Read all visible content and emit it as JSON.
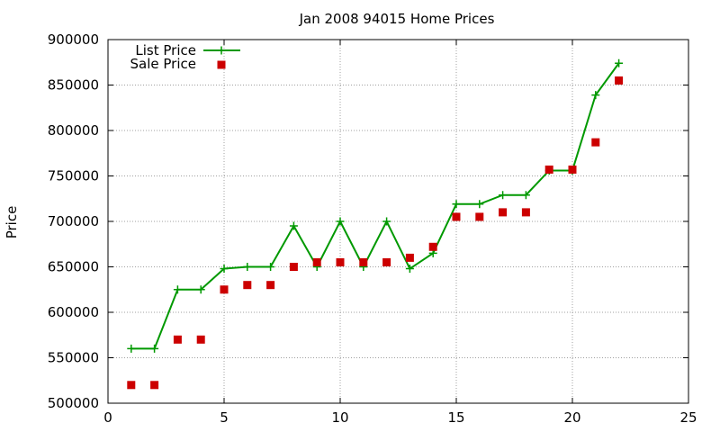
{
  "chart_data": {
    "type": "scatter",
    "title": "Jan 2008 94015 Home Prices",
    "xlabel": "",
    "ylabel": "Price",
    "xlim": [
      0,
      25
    ],
    "ylim": [
      500000,
      900000
    ],
    "x_ticks": [
      "0",
      "5",
      "10",
      "15",
      "20",
      "25"
    ],
    "y_ticks": [
      "500000",
      "550000",
      "600000",
      "650000",
      "700000",
      "750000",
      "800000",
      "850000",
      "900000"
    ],
    "grid": true,
    "legend_position": "top-left",
    "series": [
      {
        "name": "List Price",
        "style": "line-plus",
        "color": "#009900",
        "x": [
          1,
          2,
          3,
          4,
          5,
          6,
          7,
          8,
          9,
          10,
          11,
          12,
          13,
          14,
          15,
          16,
          17,
          18,
          19,
          20,
          21,
          22
        ],
        "y": [
          560000,
          560000,
          625000,
          625000,
          648000,
          650000,
          650000,
          695000,
          650000,
          700000,
          650000,
          700000,
          648000,
          665000,
          719000,
          719000,
          729000,
          729000,
          756000,
          756000,
          839000,
          874000
        ]
      },
      {
        "name": "Sale Price",
        "style": "square",
        "color": "#cc0000",
        "x": [
          1,
          2,
          3,
          4,
          5,
          6,
          7,
          8,
          9,
          10,
          11,
          12,
          13,
          14,
          15,
          16,
          17,
          18,
          19,
          20,
          21,
          22
        ],
        "y": [
          520000,
          520000,
          570000,
          570000,
          625000,
          630000,
          630000,
          650000,
          655000,
          655000,
          655000,
          655000,
          660000,
          672000,
          705000,
          705000,
          710000,
          710000,
          757000,
          757000,
          787000,
          855000
        ]
      }
    ]
  }
}
